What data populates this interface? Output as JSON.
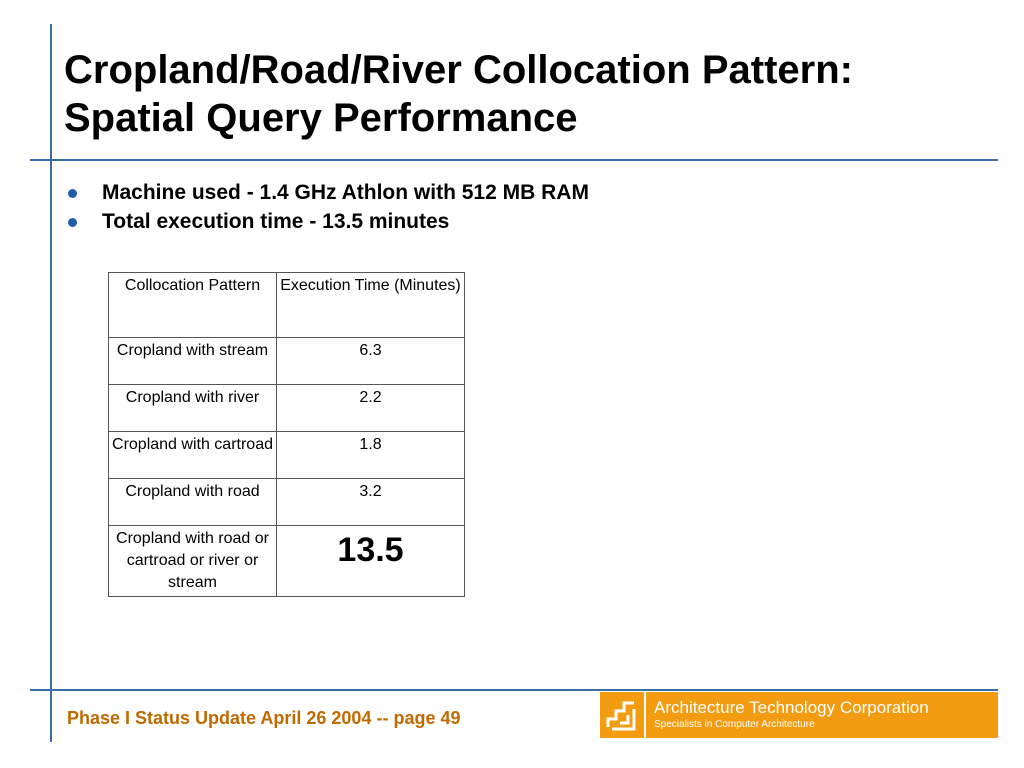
{
  "slide": {
    "title_line1": "Cropland/Road/River Collocation Pattern:",
    "title_line2": "Spatial Query Performance",
    "bullets": [
      "Machine used - 1.4 GHz Athlon with 512 MB RAM",
      "Total execution time - 13.5 minutes"
    ]
  },
  "table": {
    "headers": [
      "Collocation Pattern",
      "Execution Time (Minutes)"
    ],
    "rows": [
      {
        "pattern": "Cropland with stream",
        "time": "6.3"
      },
      {
        "pattern": "Cropland with river",
        "time": "2.2"
      },
      {
        "pattern": "Cropland with cartroad",
        "time": "1.8"
      },
      {
        "pattern": "Cropland with road",
        "time": "3.2"
      },
      {
        "pattern": "Cropland with road or cartroad or river or stream",
        "time": "13.5"
      }
    ]
  },
  "footer": {
    "text": "Phase I Status Update April 26 2004 -- page 49",
    "company": "Architecture Technology Corporation",
    "tagline": "Specialists in Computer Architecture",
    "logo_icon": "atc-logo-icon"
  },
  "colors": {
    "rule": "#3a6ea8",
    "bullet": "#1f5ea8",
    "footer_text": "#c06a00",
    "logo_bg": "#f39c12"
  }
}
